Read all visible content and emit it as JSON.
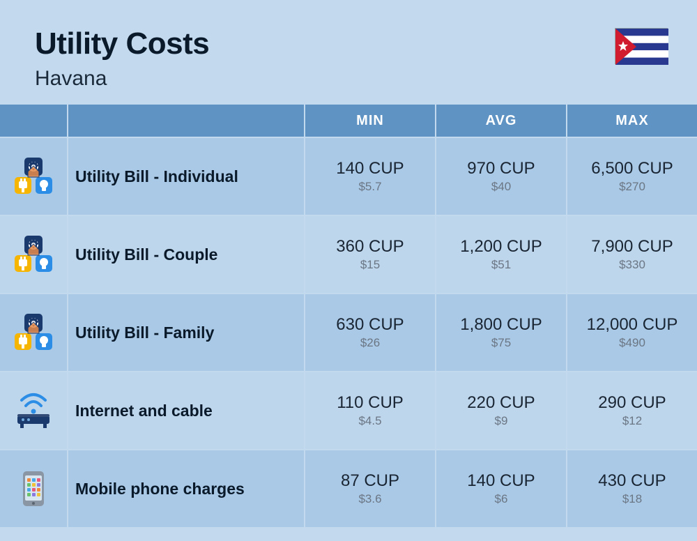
{
  "header": {
    "title": "Utility Costs",
    "subtitle": "Havana"
  },
  "flag": {
    "country": "Cuba",
    "stripe_colors": [
      "#2a3990",
      "#ffffff",
      "#2a3990",
      "#ffffff",
      "#2a3990"
    ],
    "triangle_color": "#d01c2e",
    "star_color": "#ffffff"
  },
  "columns": {
    "min": "MIN",
    "avg": "AVG",
    "max": "MAX"
  },
  "rows": [
    {
      "icon": "utility-individual",
      "label": "Utility Bill - Individual",
      "min": {
        "cup": "140 CUP",
        "usd": "$5.7"
      },
      "avg": {
        "cup": "970 CUP",
        "usd": "$40"
      },
      "max": {
        "cup": "6,500 CUP",
        "usd": "$270"
      }
    },
    {
      "icon": "utility-couple",
      "label": "Utility Bill - Couple",
      "min": {
        "cup": "360 CUP",
        "usd": "$15"
      },
      "avg": {
        "cup": "1,200 CUP",
        "usd": "$51"
      },
      "max": {
        "cup": "7,900 CUP",
        "usd": "$330"
      }
    },
    {
      "icon": "utility-family",
      "label": "Utility Bill - Family",
      "min": {
        "cup": "630 CUP",
        "usd": "$26"
      },
      "avg": {
        "cup": "1,800 CUP",
        "usd": "$75"
      },
      "max": {
        "cup": "12,000 CUP",
        "usd": "$490"
      }
    },
    {
      "icon": "internet-cable",
      "label": "Internet and cable",
      "min": {
        "cup": "110 CUP",
        "usd": "$4.5"
      },
      "avg": {
        "cup": "220 CUP",
        "usd": "$9"
      },
      "max": {
        "cup": "290 CUP",
        "usd": "$12"
      }
    },
    {
      "icon": "mobile-phone",
      "label": "Mobile phone charges",
      "min": {
        "cup": "87 CUP",
        "usd": "$3.6"
      },
      "avg": {
        "cup": "140 CUP",
        "usd": "$6"
      },
      "max": {
        "cup": "430 CUP",
        "usd": "$18"
      }
    }
  ],
  "styling": {
    "page_bg": "#c3daee",
    "header_bg": "#5f93c3",
    "header_text": "#ffffff",
    "row_odd_bg": "#a9c9e6",
    "row_even_bg": "#bdd6ec",
    "title_color": "#0a1a2a",
    "value_color": "#1a2533",
    "sub_color": "#6b7684",
    "grid_color": "#c3daee",
    "title_fontsize": 44,
    "subtitle_fontsize": 30,
    "label_fontsize": 23,
    "value_fontsize": 24,
    "sub_fontsize": 17,
    "col_header_fontsize": 20
  },
  "icon_colors": {
    "plug_yellow": "#f5b500",
    "bulb_blue": "#2b8de5",
    "gear_navy": "#1a3a6e",
    "house_orange": "#e88b4a",
    "router_navy": "#1a3a6e",
    "wifi_blue": "#2b8de5",
    "phone_grey": "#8a96a3",
    "phone_screen": "#d8e6f2"
  }
}
